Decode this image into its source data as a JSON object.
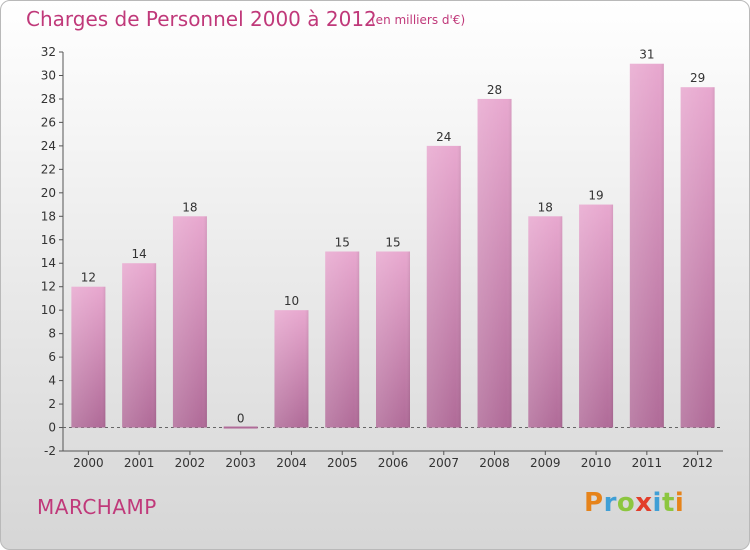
{
  "title": "Charges de Personnel 2000 à 2012",
  "subtitle": "(en milliers d'€)",
  "commune": "MARCHAMP",
  "logo": {
    "letters": [
      "P",
      "r",
      "o",
      "x",
      "i",
      "t",
      "i"
    ],
    "colors": [
      "#e6831a",
      "#3f9fd6",
      "#8cc63f",
      "#e23d2a",
      "#3f9fd6",
      "#8cc63f",
      "#e6831a"
    ]
  },
  "colors": {
    "bar_top": "#e8a8cf",
    "bar_bottom": "#b06b98",
    "accent": "#c0397a"
  },
  "chart_data": {
    "type": "bar",
    "title": "Charges de Personnel 2000 à 2012",
    "subtitle": "(en milliers d'€)",
    "categories": [
      "2000",
      "2001",
      "2002",
      "2003",
      "2004",
      "2005",
      "2006",
      "2007",
      "2008",
      "2009",
      "2010",
      "2011",
      "2012"
    ],
    "values": [
      12,
      14,
      18,
      0,
      10,
      15,
      15,
      24,
      28,
      18,
      19,
      31,
      29
    ],
    "ylim": [
      -2,
      32
    ],
    "yticks": [
      -2,
      0,
      2,
      4,
      6,
      8,
      10,
      12,
      14,
      16,
      18,
      20,
      22,
      24,
      26,
      28,
      30,
      32
    ],
    "grid": false,
    "xlabel": "",
    "ylabel": ""
  }
}
